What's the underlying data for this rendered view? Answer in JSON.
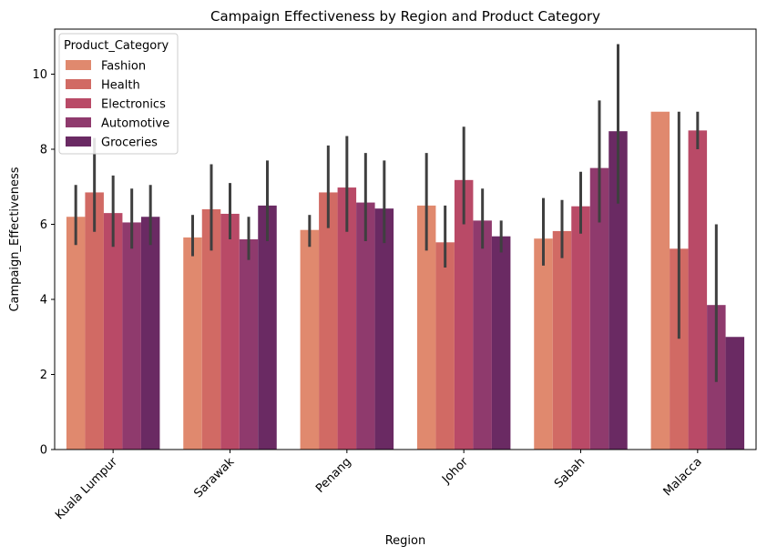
{
  "chart_data": {
    "type": "bar",
    "title": "Campaign Effectiveness by Region and Product Category",
    "xlabel": "Region",
    "ylabel": "Campaign_Effectiveness",
    "ylim": [
      0,
      11.2
    ],
    "yticks": [
      0,
      2,
      4,
      6,
      8,
      10
    ],
    "categories": [
      "Kuala Lumpur",
      "Sarawak",
      "Penang",
      "Johor",
      "Sabah",
      "Malacca"
    ],
    "legend": {
      "title": "Product_Category",
      "placement": "upper-left"
    },
    "series": [
      {
        "name": "Fashion",
        "color": "#e0896e",
        "values": [
          6.2,
          5.65,
          5.85,
          6.5,
          5.62,
          9.0
        ],
        "ci_low": [
          5.45,
          5.15,
          5.4,
          5.3,
          4.9,
          9.0
        ],
        "ci_high": [
          7.05,
          6.25,
          6.25,
          7.9,
          6.7,
          9.0
        ]
      },
      {
        "name": "Health",
        "color": "#d16a64",
        "values": [
          6.85,
          6.4,
          6.85,
          5.52,
          5.82,
          5.35
        ],
        "ci_low": [
          5.8,
          5.3,
          5.9,
          4.85,
          5.1,
          2.95
        ],
        "ci_high": [
          8.3,
          7.6,
          8.1,
          6.5,
          6.65,
          9.0
        ]
      },
      {
        "name": "Electronics",
        "color": "#b94a67",
        "values": [
          6.3,
          6.28,
          6.98,
          7.18,
          6.48,
          8.5
        ],
        "ci_low": [
          5.4,
          5.6,
          5.8,
          6.0,
          5.75,
          8.0
        ],
        "ci_high": [
          7.3,
          7.1,
          8.35,
          8.6,
          7.4,
          9.0
        ]
      },
      {
        "name": "Automotive",
        "color": "#8f3a6d",
        "values": [
          6.05,
          5.6,
          6.58,
          6.1,
          7.5,
          3.85
        ],
        "ci_low": [
          5.35,
          5.05,
          5.55,
          5.35,
          6.05,
          1.8
        ],
        "ci_high": [
          6.95,
          6.2,
          7.9,
          6.95,
          9.3,
          6.0
        ]
      },
      {
        "name": "Groceries",
        "color": "#6a2a63",
        "values": [
          6.2,
          6.5,
          6.42,
          5.68,
          8.48,
          3.0
        ],
        "ci_low": [
          5.45,
          5.55,
          5.5,
          5.25,
          6.55,
          3.0
        ],
        "ci_high": [
          7.05,
          7.7,
          7.7,
          6.1,
          10.8,
          3.0
        ]
      }
    ]
  }
}
